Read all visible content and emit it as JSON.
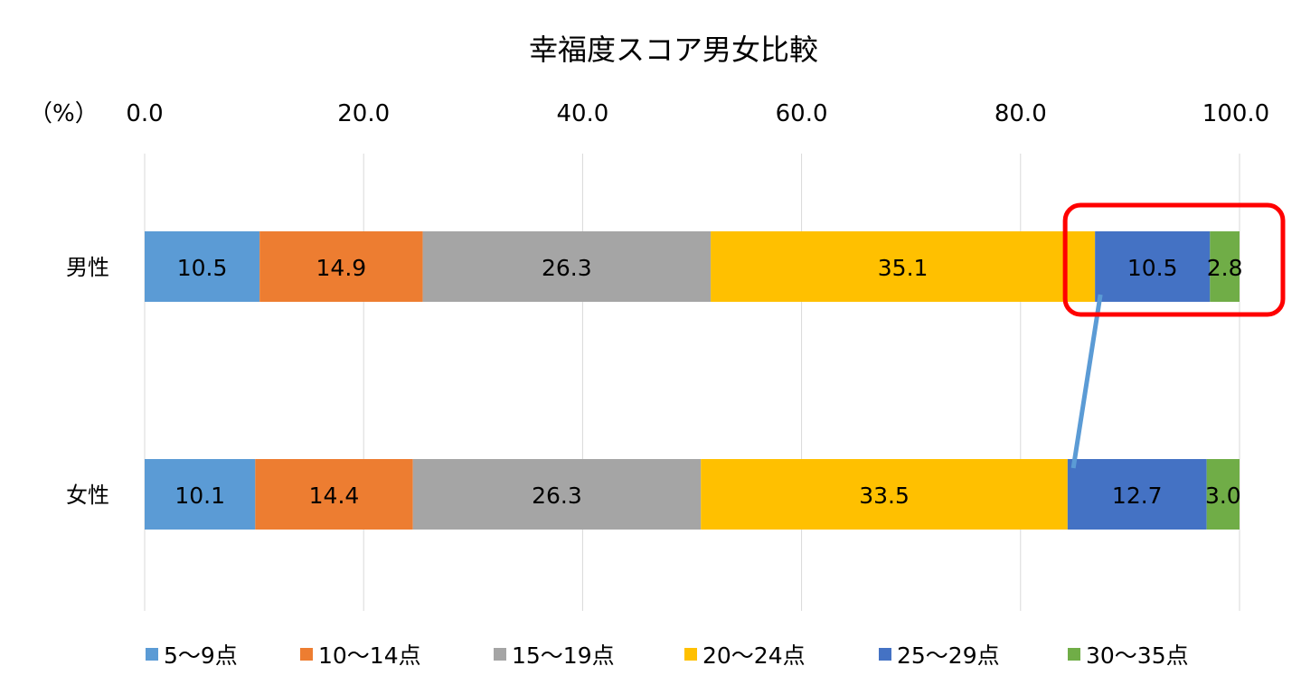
{
  "chart_data": {
    "type": "bar",
    "orientation": "horizontal",
    "stacked": true,
    "title": "幸福度スコア男女比較",
    "unit_label": "（%）",
    "xlim": [
      0,
      100
    ],
    "x_ticks": [
      "0.0",
      "20.0",
      "40.0",
      "60.0",
      "80.0",
      "100.0"
    ],
    "x_axis_position": "top",
    "grid": true,
    "legend_position": "bottom",
    "categories": [
      "男性",
      "女性"
    ],
    "series": [
      {
        "name": "5～9点",
        "color": "#5b9bd5",
        "values": [
          10.5,
          10.1
        ],
        "labels": [
          "10.5",
          "10.1"
        ]
      },
      {
        "name": "10～14点",
        "color": "#ed7d31",
        "values": [
          14.9,
          14.4
        ],
        "labels": [
          "14.9",
          "14.4"
        ]
      },
      {
        "name": "15～19点",
        "color": "#a5a5a5",
        "values": [
          26.3,
          26.3
        ],
        "labels": [
          "26.3",
          "26.3"
        ]
      },
      {
        "name": "20～24点",
        "color": "#ffc000",
        "values": [
          35.1,
          33.5
        ],
        "labels": [
          "35.1",
          "33.5"
        ]
      },
      {
        "name": "25～29点",
        "color": "#4472c4",
        "values": [
          10.5,
          12.7
        ],
        "labels": [
          "10.5",
          "12.7"
        ]
      },
      {
        "name": "30～35点",
        "color": "#70ad47",
        "values": [
          2.8,
          3.0
        ],
        "labels": [
          "2.8",
          "3.0"
        ]
      }
    ],
    "annotations": {
      "highlight_box_color": "#ff0000",
      "connector_line_color": "#5b9bd5"
    }
  }
}
